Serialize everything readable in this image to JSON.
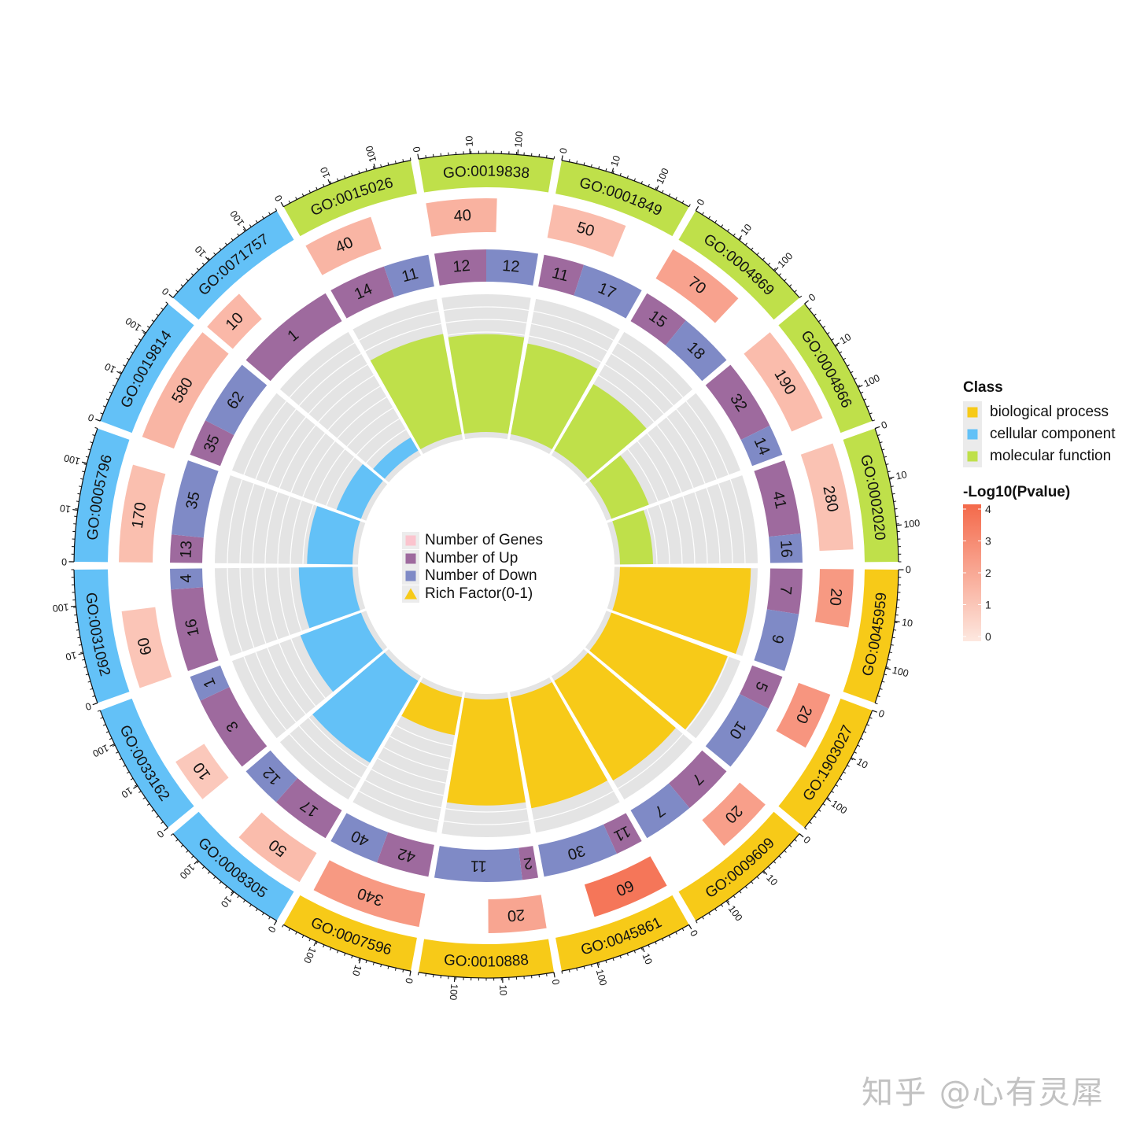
{
  "center_legend": {
    "items": [
      {
        "label": "Number of Genes",
        "shape": "square",
        "color": "#FBC4CE"
      },
      {
        "label": "Number of Up",
        "shape": "square",
        "color": "#9E6A9E"
      },
      {
        "label": "Number of Down",
        "shape": "square",
        "color": "#7F8AC6"
      },
      {
        "label": "Rich Factor(0-1)",
        "shape": "triangle",
        "color": "#F7CA18"
      }
    ],
    "key_background": "#ECECEC"
  },
  "class_legend": {
    "title": "Class",
    "key_background": "#EBEBEB",
    "items": [
      {
        "label": "biological process",
        "color": "#F7CA18"
      },
      {
        "label": "cellular component",
        "color": "#63C1F7"
      },
      {
        "label": "molecular function",
        "color": "#BFE04A"
      }
    ]
  },
  "pvalue_legend": {
    "title": "-Log10(Pvalue)",
    "ticks": [
      "4",
      "3",
      "2",
      "1",
      "0"
    ],
    "low_color": "#FDE8E0",
    "high_color": "#F4694A"
  },
  "watermark": {
    "text": "知乎 @心有灵犀"
  },
  "chart_data": {
    "type": "circos",
    "title": "",
    "description": "Circular GO enrichment plot: outer ring = GO term colored by class with log-scale gene axis; ring 2 = Number of Genes (arc length, color = -Log10(Pvalue)); ring 3 = Number of Up / Number of Down; inner ring = Rich Factor(0-1) bars",
    "tracks": [
      "GO term",
      "Number of Genes",
      "Number of Up / Number of Down",
      "Rich Factor(0-1)"
    ],
    "gene_axis": {
      "ticks": [
        "0",
        "10",
        "100"
      ],
      "scale": "log10"
    },
    "rich_factor_range": [
      0,
      1
    ],
    "pvalue_range": [
      0,
      4
    ],
    "class_colors": {
      "biological process": "#F7CA18",
      "cellular component": "#63C1F7",
      "molecular function": "#BFE04A"
    },
    "up_color": "#9E6A9E",
    "down_color": "#7F8AC6",
    "background_color": "#E4E4E4",
    "terms": [
      {
        "go_id": "GO:0045959",
        "class": "biological process",
        "genes": 20,
        "neg_log10_p": 2.5,
        "up": 7,
        "down": 9,
        "rich_factor": 0.95
      },
      {
        "go_id": "GO:1903027",
        "class": "biological process",
        "genes": 20,
        "neg_log10_p": 2.6,
        "up": 5,
        "down": 10,
        "rich_factor": 0.9
      },
      {
        "go_id": "GO:0009609",
        "class": "biological process",
        "genes": 20,
        "neg_log10_p": 2.3,
        "up": 7,
        "down": 7,
        "rich_factor": 0.84
      },
      {
        "go_id": "GO:0045861",
        "class": "biological process",
        "genes": 60,
        "neg_log10_p": 3.6,
        "up": 11,
        "down": 30,
        "rich_factor": 0.82
      },
      {
        "go_id": "GO:0010888",
        "class": "biological process",
        "genes": 20,
        "neg_log10_p": 2.1,
        "up": 2,
        "down": 11,
        "rich_factor": 0.77
      },
      {
        "go_id": "GO:0007596",
        "class": "biological process",
        "genes": 340,
        "neg_log10_p": 2.5,
        "up": 42,
        "down": 40,
        "rich_factor": 0.28
      },
      {
        "go_id": "GO:0008305",
        "class": "cellular component",
        "genes": 50,
        "neg_log10_p": 1.4,
        "up": 17,
        "down": 12,
        "rich_factor": 0.69
      },
      {
        "go_id": "GO:0033162",
        "class": "cellular component",
        "genes": 10,
        "neg_log10_p": 1.0,
        "up": 3,
        "down": 1,
        "rich_factor": 0.47
      },
      {
        "go_id": "GO:0031092",
        "class": "cellular component",
        "genes": 60,
        "neg_log10_p": 1.1,
        "up": 16,
        "down": 4,
        "rich_factor": 0.39
      },
      {
        "go_id": "GO:0005796",
        "class": "cellular component",
        "genes": 170,
        "neg_log10_p": 1.3,
        "up": 13,
        "down": 35,
        "rich_factor": 0.33
      },
      {
        "go_id": "GO:0019814",
        "class": "cellular component",
        "genes": 580,
        "neg_log10_p": 1.6,
        "up": 35,
        "down": 62,
        "rich_factor": 0.19
      },
      {
        "go_id": "GO:0071757",
        "class": "cellular component",
        "genes": 10,
        "neg_log10_p": 1.5,
        "up": 1,
        "down": 0,
        "rich_factor": 0.11
      },
      {
        "go_id": "GO:0015026",
        "class": "molecular function",
        "genes": 40,
        "neg_log10_p": 1.6,
        "up": 14,
        "down": 11,
        "rich_factor": 0.74
      },
      {
        "go_id": "GO:0019838",
        "class": "molecular function",
        "genes": 40,
        "neg_log10_p": 1.7,
        "up": 12,
        "down": 12,
        "rich_factor": 0.71
      },
      {
        "go_id": "GO:0001849",
        "class": "molecular function",
        "genes": 50,
        "neg_log10_p": 1.4,
        "up": 11,
        "down": 17,
        "rich_factor": 0.67
      },
      {
        "go_id": "GO:0004869",
        "class": "molecular function",
        "genes": 70,
        "neg_log10_p": 2.2,
        "up": 15,
        "down": 18,
        "rich_factor": 0.56
      },
      {
        "go_id": "GO:0004866",
        "class": "molecular function",
        "genes": 190,
        "neg_log10_p": 1.4,
        "up": 32,
        "down": 14,
        "rich_factor": 0.29
      },
      {
        "go_id": "GO:0002020",
        "class": "molecular function",
        "genes": 280,
        "neg_log10_p": 1.2,
        "up": 41,
        "down": 16,
        "rich_factor": 0.24
      }
    ]
  }
}
